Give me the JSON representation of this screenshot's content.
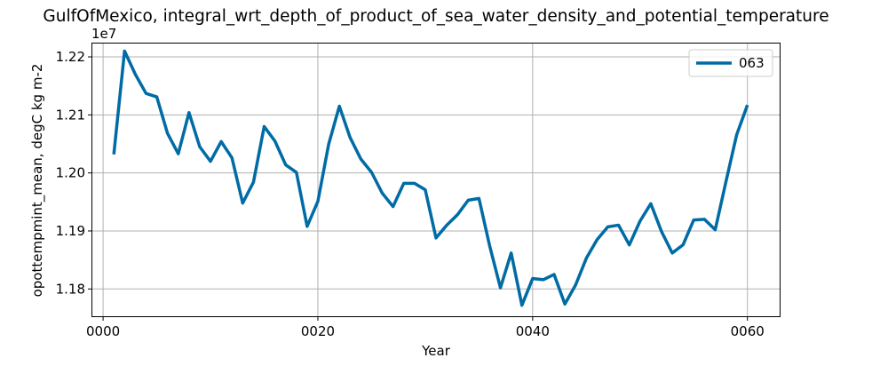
{
  "chart_data": {
    "type": "line",
    "title": "GulfOfMexico, integral_wrt_depth_of_product_of_sea_water_density_and_potential_temperature",
    "xlabel": "Year",
    "ylabel": "opottempmint_mean, degC kg m-2",
    "y_offset_label": "1e7",
    "y_multiplier": 10000000,
    "xlim": [
      -1,
      63
    ],
    "ylim": [
      1.1753,
      1.2223
    ],
    "x_ticks": [
      0,
      20,
      40,
      60
    ],
    "x_tick_labels": [
      "0000",
      "0020",
      "0040",
      "0060"
    ],
    "y_ticks": [
      1.18,
      1.19,
      1.2,
      1.21,
      1.22
    ],
    "y_tick_labels": [
      "1.18",
      "1.19",
      "1.20",
      "1.21",
      "1.22"
    ],
    "grid": true,
    "legend_position": "upper right",
    "series": [
      {
        "name": "063",
        "color": "#006ba4",
        "x": [
          1,
          2,
          3,
          4,
          5,
          6,
          7,
          8,
          9,
          10,
          11,
          12,
          13,
          14,
          15,
          16,
          17,
          18,
          19,
          20,
          21,
          22,
          23,
          24,
          25,
          26,
          27,
          28,
          29,
          30,
          31,
          32,
          33,
          34,
          35,
          36,
          37,
          38,
          39,
          40,
          41,
          42,
          43,
          44,
          45,
          46,
          47,
          48,
          49,
          50,
          51,
          52,
          53,
          54,
          55,
          56,
          57,
          58,
          59,
          60
        ],
        "y": [
          1.2032,
          1.221,
          1.217,
          1.2137,
          1.2131,
          1.2068,
          1.2033,
          1.2104,
          1.2045,
          1.202,
          1.2054,
          1.2026,
          1.1948,
          1.1984,
          1.208,
          1.2055,
          1.2014,
          1.2001,
          1.1908,
          1.1951,
          1.2049,
          1.2115,
          1.2061,
          1.2024,
          1.2001,
          1.1965,
          1.1942,
          1.1982,
          1.1982,
          1.1971,
          1.1888,
          1.191,
          1.1928,
          1.1953,
          1.1956,
          1.1874,
          1.1802,
          1.1862,
          1.1772,
          1.1818,
          1.1816,
          1.1825,
          1.1774,
          1.1807,
          1.1853,
          1.1885,
          1.1907,
          1.191,
          1.1876,
          1.1917,
          1.1947,
          1.1899,
          1.1862,
          1.1876,
          1.1919,
          1.192,
          1.1902,
          1.1985,
          1.2066,
          1.2117
        ]
      }
    ]
  }
}
